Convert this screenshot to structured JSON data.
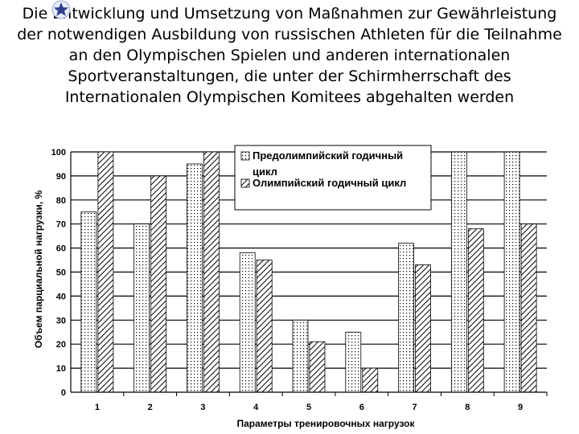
{
  "slide": {
    "title": "Die Entwicklung und Umsetzung von Maßnahmen zur Gewährleistung der notwendigen Ausbildung von russischen Athleten für die Teilnahme an den Olympischen Spielen und anderen internationalen Sportveranstaltungen, die unter der Schirmherrschaft des Internationalen Olympischen Komitees abgehalten werden",
    "bullet_icon": "star-icon",
    "accent": "#2d3e8f"
  },
  "chart_data": {
    "type": "bar",
    "categories": [
      "1",
      "2",
      "3",
      "4",
      "5",
      "6",
      "7",
      "8",
      "9"
    ],
    "series": [
      {
        "name": "Предолимпийский годичный цикл",
        "values": [
          75,
          70,
          95,
          58,
          30,
          25,
          62,
          100,
          100
        ],
        "pattern": "dotted"
      },
      {
        "name": "Олимпийский годичный цикл",
        "values": [
          100,
          90,
          100,
          55,
          21,
          10,
          53,
          68,
          70
        ],
        "pattern": "hatched"
      }
    ],
    "xlabel": "Параметры тренировочных нагрузок",
    "ylabel": "Объем парциальной нагрузки, %",
    "ylim": [
      0,
      100
    ],
    "yticks": [
      0,
      10,
      20,
      30,
      40,
      50,
      60,
      70,
      80,
      90,
      100
    ],
    "grid": true,
    "legend_position": "top-right"
  }
}
